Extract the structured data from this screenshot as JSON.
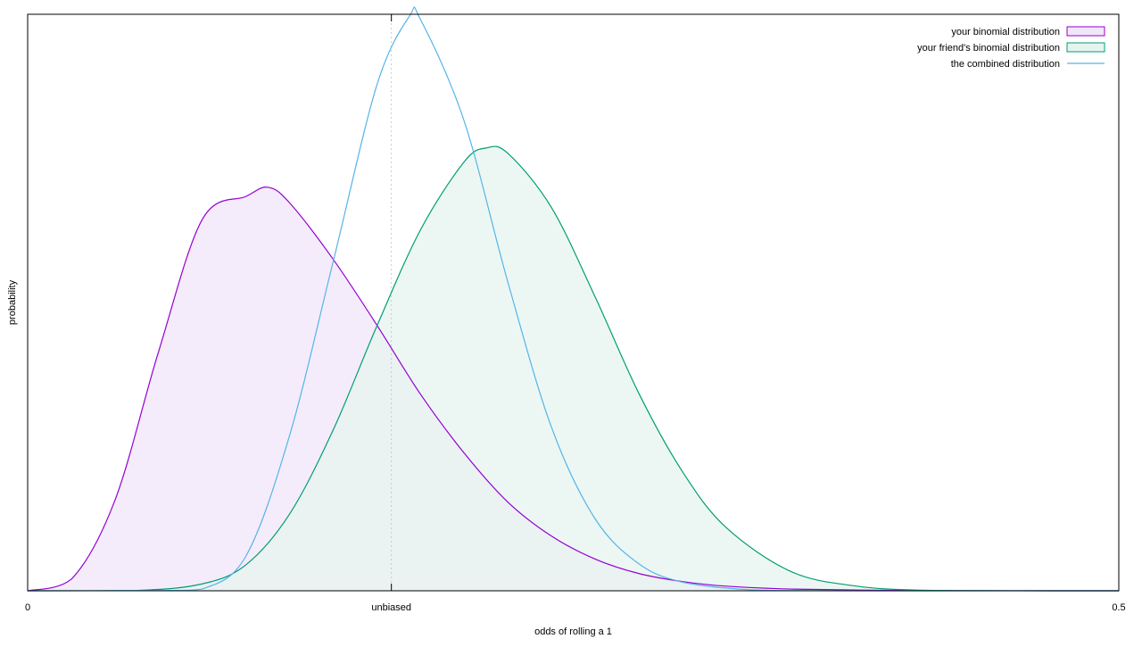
{
  "chart_data": {
    "type": "area",
    "xlabel": "odds of rolling a 1",
    "ylabel": "probability",
    "xlim": [
      0,
      0.5
    ],
    "ylim": [
      0,
      1
    ],
    "x_ticks": [
      {
        "value": 0,
        "label": "0"
      },
      {
        "value": 0.16667,
        "label": "unbiased"
      },
      {
        "value": 0.5,
        "label": "0.5"
      }
    ],
    "reference_line": {
      "x": 0.16667,
      "style": "dotted",
      "color": "#c8c8c8"
    },
    "grid": false,
    "legend": {
      "position": "top-right"
    },
    "series": [
      {
        "name": "your binomial distribution",
        "kind": "filled",
        "line_color": "#9400d3",
        "fill_color": "#f2e6fa",
        "x": [
          0,
          0.02,
          0.04,
          0.06,
          0.08,
          0.1,
          0.11,
          0.12,
          0.14,
          0.16,
          0.18,
          0.2,
          0.22,
          0.24,
          0.26,
          0.28,
          0.3,
          0.32,
          0.35,
          0.4,
          0.45,
          0.5
        ],
        "values": [
          0,
          0.02,
          0.157,
          0.415,
          0.644,
          0.684,
          0.7,
          0.673,
          0.575,
          0.461,
          0.341,
          0.239,
          0.154,
          0.095,
          0.055,
          0.03,
          0.016,
          0.008,
          0.003,
          0.0006,
          0.0001,
          0
        ]
      },
      {
        "name": "your friend's binomial distribution",
        "kind": "filled",
        "line_color": "#009e73",
        "fill_color": "#e5f4ef",
        "x": [
          0,
          0.05,
          0.08,
          0.1,
          0.12,
          0.14,
          0.16,
          0.18,
          0.2,
          0.21,
          0.22,
          0.24,
          0.26,
          0.28,
          0.3,
          0.32,
          0.35,
          0.38,
          0.41,
          0.45,
          0.5
        ],
        "values": [
          0,
          0.0005,
          0.012,
          0.045,
          0.133,
          0.279,
          0.459,
          0.626,
          0.744,
          0.768,
          0.759,
          0.665,
          0.51,
          0.343,
          0.207,
          0.11,
          0.033,
          0.008,
          0.001,
          0.0001,
          0
        ]
      },
      {
        "name": "the combined distribution",
        "kind": "line",
        "line_color": "#56b4e9",
        "x": [
          0,
          0.06,
          0.08,
          0.1,
          0.12,
          0.14,
          0.16,
          0.175,
          0.18,
          0.2,
          0.22,
          0.24,
          0.26,
          0.28,
          0.3,
          0.33,
          0.36,
          0.4,
          0.45,
          0.5
        ],
        "values": [
          0,
          0.0005,
          0.003,
          0.06,
          0.269,
          0.571,
          0.877,
          0.997,
          0.991,
          0.815,
          0.536,
          0.284,
          0.125,
          0.047,
          0.015,
          0.002,
          0.0002,
          0,
          0,
          0
        ]
      }
    ]
  }
}
